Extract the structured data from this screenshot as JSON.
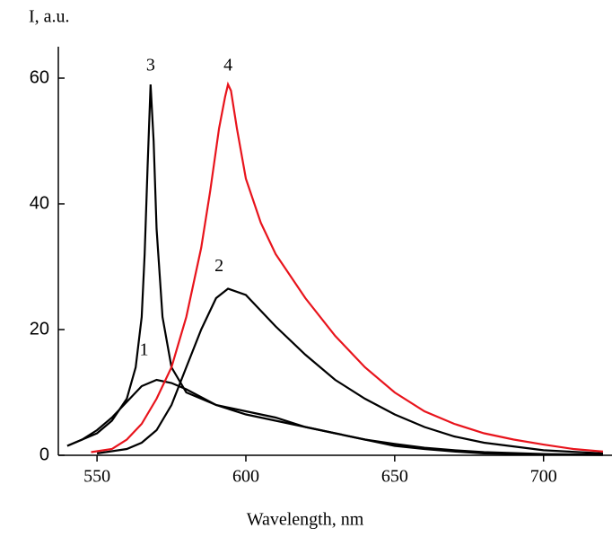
{
  "chart_data": {
    "type": "line",
    "y_label": "I, a.u.",
    "x_label": "Wavelength, nm",
    "xlim": [
      537,
      723
    ],
    "ylim": [
      0,
      65
    ],
    "xticks": [
      550,
      600,
      650,
      700
    ],
    "yticks": [
      0,
      20,
      40,
      60
    ],
    "series": [
      {
        "name": "1",
        "color": "#000000",
        "x": [
          540,
          545,
          550,
          555,
          560,
          565,
          570,
          575,
          580,
          590,
          600,
          610,
          620,
          630,
          640,
          650,
          660,
          670,
          680,
          700,
          720
        ],
        "values": [
          1.5,
          2.5,
          4,
          6,
          8.5,
          11,
          12,
          11.5,
          10.5,
          8,
          6.5,
          5.5,
          4.5,
          3.5,
          2.5,
          1.8,
          1.2,
          0.8,
          0.5,
          0.2,
          0.1
        ]
      },
      {
        "name": "2",
        "color": "#000000",
        "x": [
          550,
          560,
          565,
          570,
          575,
          580,
          585,
          590,
          594,
          600,
          605,
          610,
          620,
          630,
          640,
          650,
          660,
          670,
          680,
          700,
          720
        ],
        "values": [
          0.3,
          1,
          2,
          4,
          8,
          14,
          20,
          25,
          26.5,
          25.5,
          23,
          20.5,
          16,
          12,
          9,
          6.5,
          4.5,
          3,
          2,
          0.8,
          0.3
        ]
      },
      {
        "name": "3",
        "color": "#000000",
        "x": [
          540,
          550,
          555,
          560,
          563,
          565,
          566,
          567,
          568,
          569,
          570,
          572,
          575,
          580,
          590,
          600,
          610,
          620,
          630,
          640,
          650,
          660,
          670,
          680,
          700,
          720
        ],
        "values": [
          1.5,
          3.5,
          5.5,
          9,
          14,
          22,
          32,
          46,
          59,
          50,
          36,
          22,
          14,
          10,
          8,
          7,
          6,
          4.5,
          3.5,
          2.5,
          1.5,
          1,
          0.6,
          0.3,
          0.1,
          0.05
        ]
      },
      {
        "name": "4",
        "color": "#e8141c",
        "x": [
          548,
          555,
          560,
          565,
          570,
          575,
          580,
          585,
          588,
          591,
          593,
          594,
          595,
          597,
          600,
          605,
          610,
          620,
          630,
          640,
          650,
          660,
          670,
          680,
          690,
          700,
          710,
          720
        ],
        "values": [
          0.5,
          1,
          2.5,
          5,
          9,
          14,
          22,
          33,
          42,
          52,
          57,
          59,
          58,
          52,
          44,
          37,
          32,
          25,
          19,
          14,
          10,
          7,
          5,
          3.5,
          2.5,
          1.7,
          1,
          0.6
        ]
      }
    ]
  }
}
